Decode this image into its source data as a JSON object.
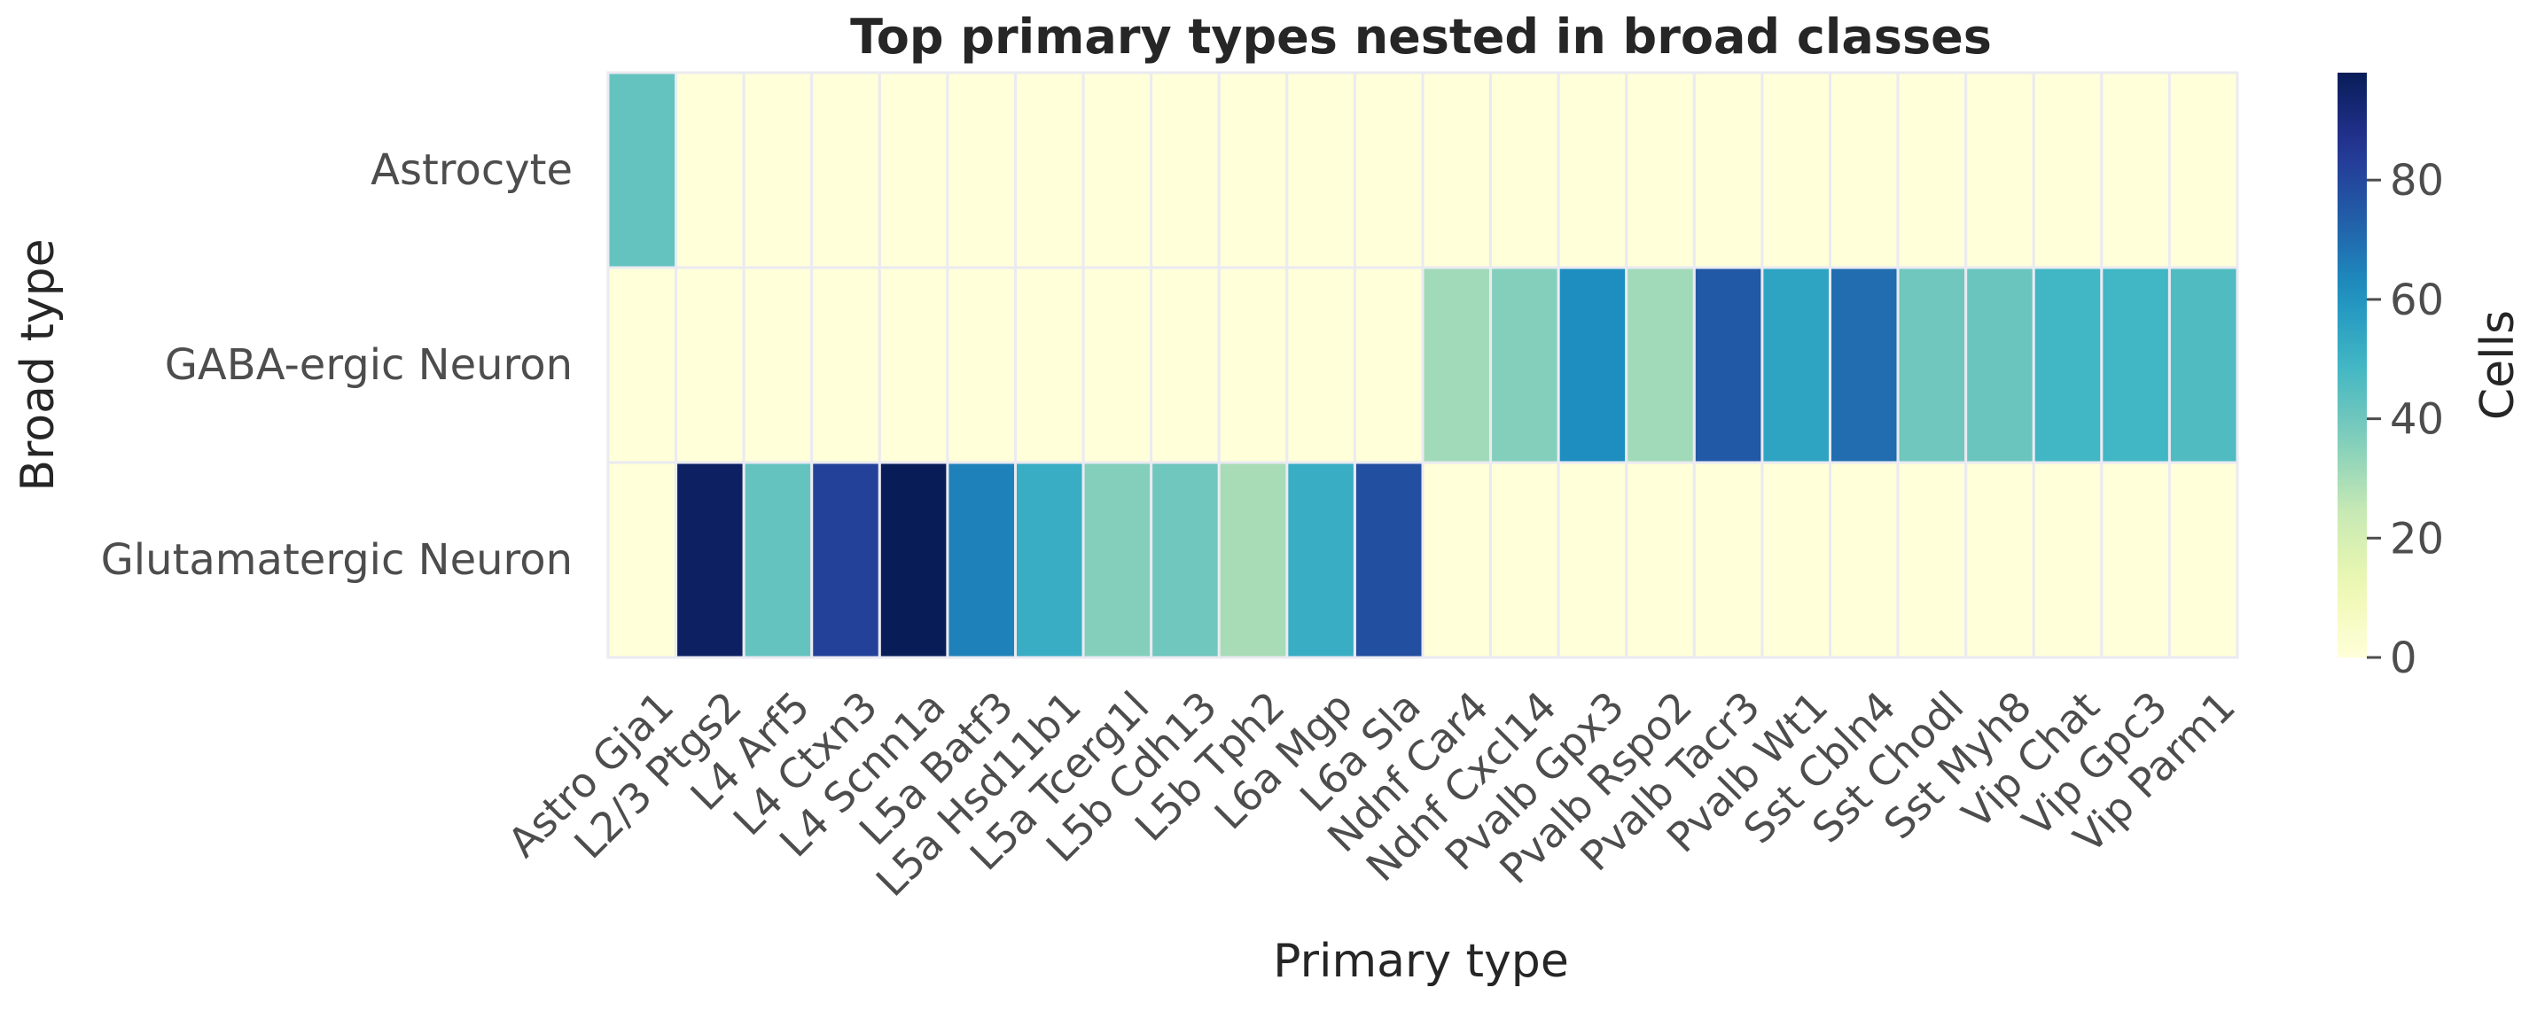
{
  "chart_data": {
    "type": "heatmap",
    "title": "Top primary types nested in broad classes",
    "xlabel": "Primary type",
    "ylabel": "Broad type",
    "colorbar_label": "Cells",
    "colormap": "YlGnBu",
    "color_range": [
      0,
      98
    ],
    "colorbar_ticks": [
      0,
      20,
      40,
      60,
      80
    ],
    "x_categories": [
      "Astro Gja1",
      "L2/3 Ptgs2",
      "L4 Arf5",
      "L4 Ctxn3",
      "L4 Scnn1a",
      "L5a Batf3",
      "L5a Hsd11b1",
      "L5a Tcerg1l",
      "L5b Cdh13",
      "L5b Tph2",
      "L6a Mgp",
      "L6a Sla",
      "Ndnf Car4",
      "Ndnf Cxcl14",
      "Pvalb Gpx3",
      "Pvalb Rspo2",
      "Pvalb Tacr3",
      "Pvalb Wt1",
      "Sst Cbln4",
      "Sst Chodl",
      "Sst Myh8",
      "Vip Chat",
      "Vip Gpc3",
      "Vip Parm1"
    ],
    "y_categories": [
      "Astrocyte",
      "GABA-ergic Neuron",
      "Glutamatergic Neuron"
    ],
    "values": [
      [
        42,
        0,
        0,
        0,
        0,
        0,
        0,
        0,
        0,
        0,
        0,
        0,
        0,
        0,
        0,
        0,
        0,
        0,
        0,
        0,
        0,
        0,
        0,
        0
      ],
      [
        0,
        0,
        0,
        0,
        0,
        0,
        0,
        0,
        0,
        0,
        0,
        0,
        31,
        36,
        62,
        31,
        75,
        55,
        70,
        40,
        41,
        49,
        49,
        46
      ],
      [
        0,
        96,
        42,
        82,
        98,
        65,
        52,
        36,
        40,
        30,
        52,
        78,
        0,
        0,
        0,
        0,
        0,
        0,
        0,
        0,
        0,
        0,
        0,
        0
      ]
    ],
    "grid": false,
    "legend": "colorbar-right"
  }
}
